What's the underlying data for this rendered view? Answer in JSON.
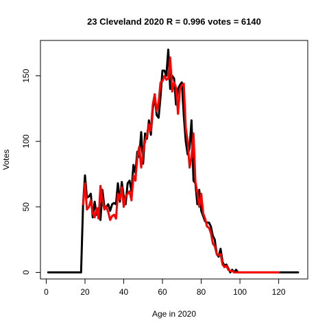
{
  "chart_data": {
    "type": "line",
    "title": "23 Cleveland 2020 R = 0.996 votes = 6140",
    "xlabel": "Age in 2020",
    "ylabel": "Votes",
    "xlim": [
      -3,
      135
    ],
    "ylim": [
      -5,
      177
    ],
    "xticks": [
      0,
      20,
      40,
      60,
      80,
      100,
      120
    ],
    "yticks": [
      0,
      50,
      100,
      150
    ],
    "grid": false,
    "series": [
      {
        "color": "#000000",
        "x": [
          1,
          18,
          19,
          20,
          21,
          22,
          23,
          24,
          25,
          26,
          27,
          28,
          29,
          30,
          31,
          32,
          33,
          34,
          35,
          36,
          37,
          38,
          39,
          40,
          41,
          42,
          43,
          44,
          45,
          46,
          47,
          48,
          49,
          50,
          51,
          52,
          53,
          54,
          55,
          56,
          57,
          58,
          59,
          60,
          61,
          62,
          63,
          64,
          65,
          66,
          67,
          68,
          69,
          70,
          71,
          72,
          73,
          74,
          75,
          76,
          77,
          78,
          79,
          80,
          81,
          82,
          83,
          84,
          85,
          86,
          87,
          88,
          89,
          90,
          91,
          92,
          93,
          94,
          95,
          96,
          97,
          98,
          99,
          100,
          101,
          102,
          103,
          104,
          105,
          110,
          120,
          130
        ],
        "y": [
          0,
          0,
          52,
          74,
          57,
          58,
          60,
          42,
          54,
          44,
          49,
          40,
          63,
          50,
          50,
          52,
          47,
          52,
          53,
          52,
          68,
          54,
          69,
          58,
          52,
          68,
          70,
          62,
          82,
          76,
          92,
          88,
          107,
          83,
          106,
          102,
          116,
          105,
          125,
          134,
          120,
          118,
          134,
          154,
          154,
          150,
          170,
          140,
          150,
          148,
          128,
          140,
          143,
          145,
          120,
          100,
          90,
          95,
          116,
          70,
          68,
          52,
          63,
          47,
          43,
          39,
          38,
          38,
          35,
          28,
          25,
          14,
          12,
          18,
          8,
          5,
          6,
          3,
          0,
          2,
          0,
          2,
          0,
          0,
          0,
          0,
          0,
          0,
          0,
          0,
          0,
          0
        ]
      },
      {
        "color": "#ff0000",
        "x": [
          19,
          20,
          21,
          22,
          23,
          24,
          25,
          26,
          27,
          28,
          29,
          30,
          31,
          32,
          33,
          34,
          35,
          36,
          37,
          38,
          39,
          40,
          41,
          42,
          43,
          44,
          45,
          46,
          47,
          48,
          49,
          50,
          51,
          52,
          53,
          54,
          55,
          56,
          57,
          58,
          59,
          60,
          61,
          62,
          63,
          64,
          65,
          66,
          67,
          68,
          69,
          70,
          71,
          72,
          73,
          74,
          75,
          76,
          77,
          78,
          79,
          80,
          81,
          82,
          83,
          84,
          85,
          86,
          87,
          88,
          89,
          90,
          91,
          92,
          93,
          94,
          95,
          96,
          97,
          98,
          99,
          100,
          101,
          102,
          103,
          104,
          105,
          110,
          120
        ],
        "y": [
          52,
          68,
          48,
          50,
          55,
          45,
          42,
          49,
          41,
          66,
          55,
          48,
          50,
          46,
          40,
          43,
          44,
          41,
          60,
          56,
          65,
          50,
          58,
          60,
          62,
          55,
          74,
          70,
          88,
          96,
          80,
          92,
          100,
          105,
          113,
          108,
          128,
          136,
          123,
          130,
          145,
          146,
          150,
          147,
          148,
          164,
          138,
          145,
          141,
          121,
          140,
          143,
          144,
          110,
          100,
          80,
          88,
          106,
          69,
          61,
          50,
          60,
          45,
          41,
          35,
          34,
          30,
          22,
          20,
          14,
          13,
          14,
          6,
          4,
          5,
          2,
          1,
          1,
          0,
          0,
          0,
          0,
          0,
          0,
          0,
          0,
          0,
          0,
          0
        ]
      }
    ]
  }
}
